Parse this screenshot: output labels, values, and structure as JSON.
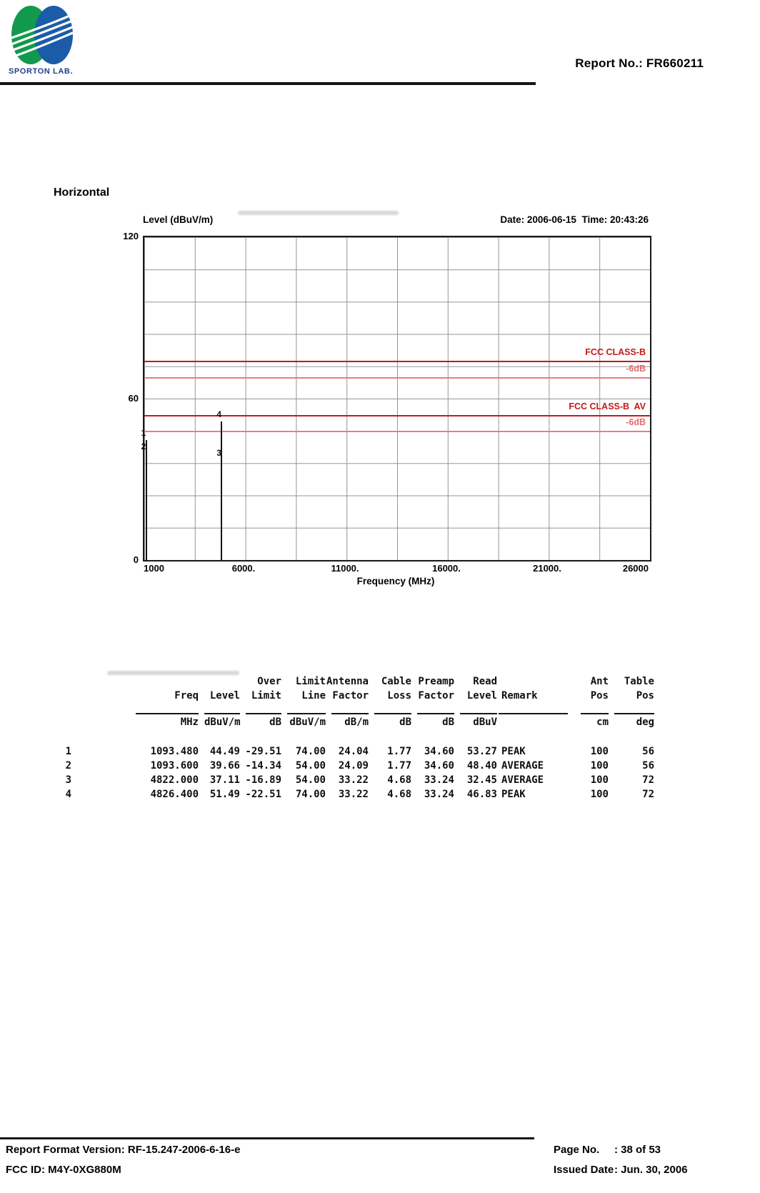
{
  "header": {
    "logo_text": "SPORTON LAB.",
    "report_no": "Report No.: FR660211"
  },
  "section": {
    "title": "Horizontal"
  },
  "chart": {
    "level_axis_label": "Level (dBuV/m)",
    "datetime": "Date: 2006-06-15  Time: 20:43:26",
    "frequency_axis_label": "Frequency (MHz)",
    "y_ticks": [
      "120",
      "60",
      "0"
    ],
    "x_ticks": [
      "1000",
      "6000.",
      "11000.",
      "16000.",
      "21000.",
      "26000"
    ]
  },
  "chart_data": {
    "type": "line",
    "title": "Radiated emission spectrum, horizontal polarization",
    "xlabel": "Frequency (MHz)",
    "ylabel": "Level (dBuV/m)",
    "xlim": [
      1000,
      26000
    ],
    "ylim": [
      0,
      120
    ],
    "x_tick_values": [
      1000,
      6000,
      11000,
      16000,
      21000,
      26000
    ],
    "y_tick_values": [
      120,
      60,
      0
    ],
    "grid": true,
    "date": "2006-06-15",
    "time": "20:43:26",
    "limit_lines": [
      {
        "label": "FCC CLASS-B",
        "value": 74,
        "shade": "dark"
      },
      {
        "label": "-6dB",
        "value": 68,
        "shade": "light"
      },
      {
        "label": "FCC CLASS-B  AV",
        "value": 54,
        "shade": "dark"
      },
      {
        "label": "-6dB",
        "value": 48,
        "shade": "light"
      }
    ],
    "signals": [
      {
        "marker": "1",
        "freq_mhz": 1093.48,
        "level_dbuv_m": 44.49
      },
      {
        "marker": "2",
        "freq_mhz": 1093.6,
        "level_dbuv_m": 39.66
      },
      {
        "marker": "3",
        "freq_mhz": 4822.0,
        "level_dbuv_m": 37.11
      },
      {
        "marker": "4",
        "freq_mhz": 4826.4,
        "level_dbuv_m": 51.49
      }
    ]
  },
  "table": {
    "h1": {
      "over": "Over",
      "limit": "Limit",
      "antenna": "Antenna",
      "cable": "Cable",
      "preamp": "Preamp",
      "read": "Read",
      "ant": "Ant",
      "table": "Table"
    },
    "h2": {
      "freq": "Freq",
      "level": "Level",
      "limit": "Limit",
      "line": "Line",
      "factor1": "Factor",
      "loss": "Loss",
      "factor2": "Factor",
      "level2": "Level",
      "remark": "Remark",
      "pos1": "Pos",
      "pos2": "Pos"
    },
    "units": {
      "freq": "MHz",
      "level": "dBuV/m",
      "over": "dB",
      "line": "dBuV/m",
      "antenna": "dB/m",
      "cable": "dB",
      "preamp": "dB",
      "read": "dBuV",
      "ant": "cm",
      "table": "deg"
    },
    "rows": [
      {
        "no": "1",
        "freq": "1093.480",
        "level": "44.49",
        "over": "-29.51",
        "line": "74.00",
        "antenna": "24.04",
        "cable": "1.77",
        "preamp": "34.60",
        "read": "53.27",
        "remark": "PEAK",
        "ant": "100",
        "table": "56"
      },
      {
        "no": "2",
        "freq": "1093.600",
        "level": "39.66",
        "over": "-14.34",
        "line": "54.00",
        "antenna": "24.09",
        "cable": "1.77",
        "preamp": "34.60",
        "read": "48.40",
        "remark": "AVERAGE",
        "ant": "100",
        "table": "56"
      },
      {
        "no": "3",
        "freq": "4822.000",
        "level": "37.11",
        "over": "-16.89",
        "line": "54.00",
        "antenna": "33.22",
        "cable": "4.68",
        "preamp": "33.24",
        "read": "32.45",
        "remark": "AVERAGE",
        "ant": "100",
        "table": "72"
      },
      {
        "no": "4",
        "freq": "4826.400",
        "level": "51.49",
        "over": "-22.51",
        "line": "74.00",
        "antenna": "33.22",
        "cable": "4.68",
        "preamp": "33.24",
        "read": "46.83",
        "remark": "PEAK",
        "ant": "100",
        "table": "72"
      }
    ]
  },
  "footer": {
    "format_version": "Report Format Version: RF-15.247-2006-6-16-e",
    "fcc_id": "FCC ID: M4Y-0XG880M",
    "page_no_label": "Page No.",
    "page_no_value": ": 38 of 53",
    "issued_date_label": "Issued Date",
    "issued_date_value": ": Jun. 30, 2006"
  },
  "colors": {
    "limit_dark_red": "#c41a1a",
    "limit_light_red": "#e57f7f",
    "logo_green": "#119a4d",
    "logo_blue": "#1a5ca8",
    "logo_text_blue": "#23408e"
  }
}
